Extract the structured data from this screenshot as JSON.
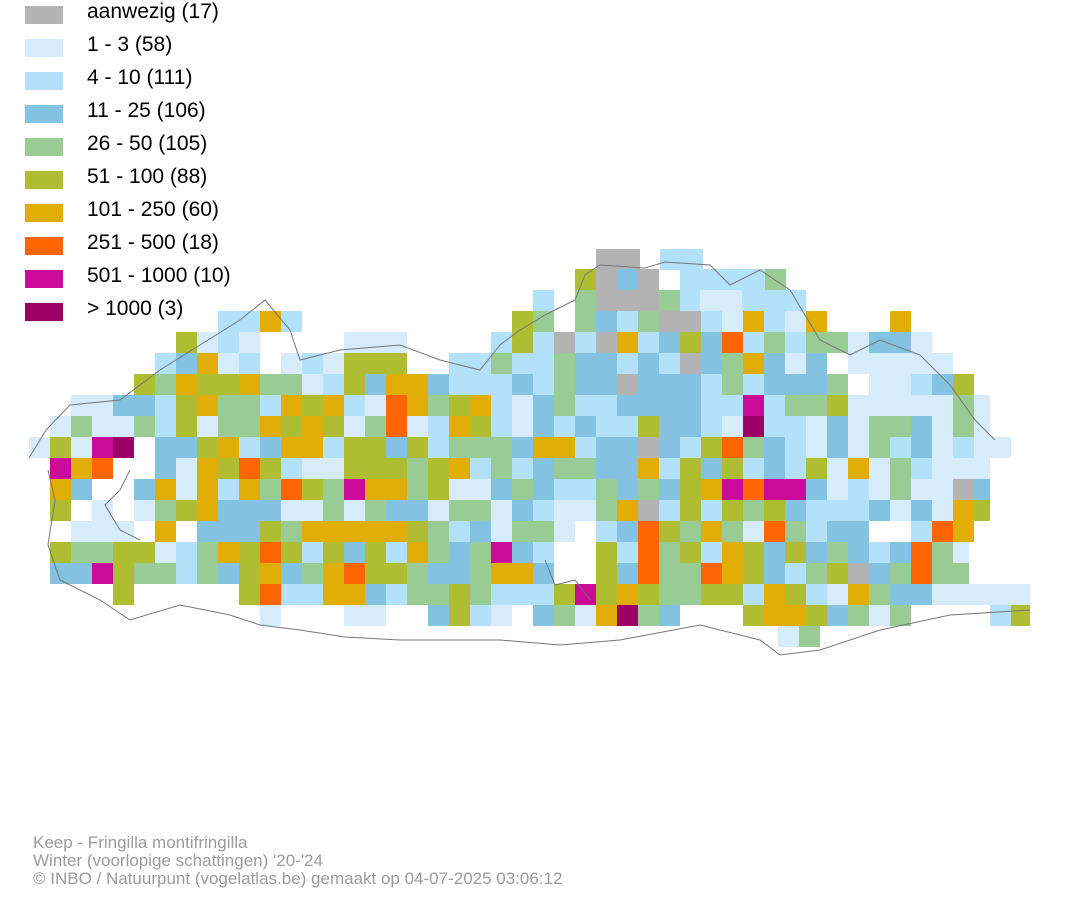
{
  "legend": {
    "items": [
      {
        "label": "aanwezig (17)",
        "color": "#b3b3b3"
      },
      {
        "label": "1 - 3 (58)",
        "color": "#d6ecfa"
      },
      {
        "label": "4 - 10 (111)",
        "color": "#b4e1fa"
      },
      {
        "label": "11 - 25 (106)",
        "color": "#84c2e2"
      },
      {
        "label": "26 - 50 (105)",
        "color": "#98cc94"
      },
      {
        "label": "51 - 100 (88)",
        "color": "#afbd32"
      },
      {
        "label": "101 - 250 (60)",
        "color": "#e0ae06"
      },
      {
        "label": "251 - 500 (18)",
        "color": "#ff6603"
      },
      {
        "label": "501 - 1000 (10)",
        "color": "#cc0a9a"
      },
      {
        "label": "> 1000 (3)",
        "color": "#9c0064"
      }
    ]
  },
  "footer": {
    "species": "Keep - Fringilla montifringilla",
    "season": "Winter (voorlopige schattingen) '20-'24",
    "credit": "© INBO / Natuurpunt (vogelatlas.be) gemaakt op 04-07-2025 03:06:12"
  }
}
